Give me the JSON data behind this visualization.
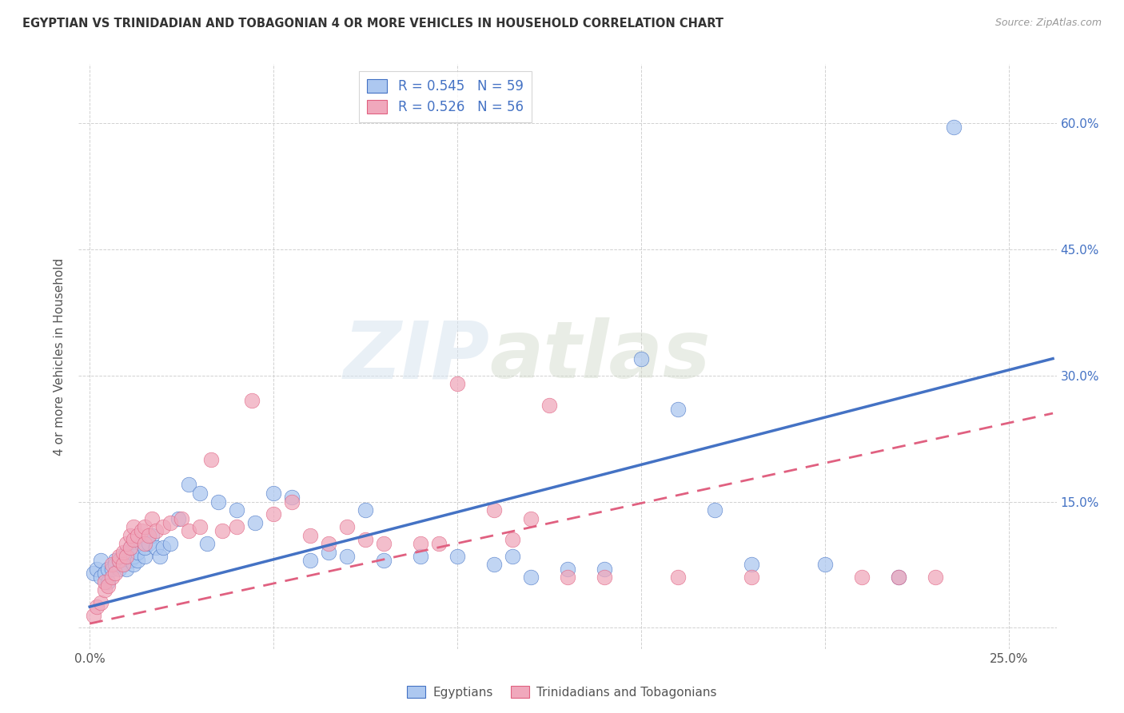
{
  "title": "EGYPTIAN VS TRINIDADIAN AND TOBAGONIAN 4 OR MORE VEHICLES IN HOUSEHOLD CORRELATION CHART",
  "source": "Source: ZipAtlas.com",
  "ylabel": "4 or more Vehicles in Household",
  "xlim": [
    -0.003,
    0.263
  ],
  "ylim": [
    -0.025,
    0.67
  ],
  "legend_r_egyptian": "R = 0.545",
  "legend_n_egyptian": "N = 59",
  "legend_r_trinidadian": "R = 0.526",
  "legend_n_trinidadian": "N = 56",
  "legend_labels": [
    "Egyptians",
    "Trinidadians and Tobagonians"
  ],
  "color_egyptian": "#adc8f0",
  "color_trinidadian": "#f0a8bc",
  "color_line_egyptian": "#4472c4",
  "color_line_trinidadian": "#e06080",
  "watermark": "ZIPatlas",
  "eg_line_x0": 0.0,
  "eg_line_y0": 0.025,
  "eg_line_x1": 0.262,
  "eg_line_y1": 0.32,
  "tri_line_x0": 0.0,
  "tri_line_y0": 0.005,
  "tri_line_x1": 0.262,
  "tri_line_y1": 0.255,
  "egyptian_x": [
    0.001,
    0.002,
    0.003,
    0.003,
    0.004,
    0.005,
    0.005,
    0.006,
    0.007,
    0.007,
    0.008,
    0.008,
    0.009,
    0.009,
    0.01,
    0.01,
    0.011,
    0.011,
    0.012,
    0.012,
    0.013,
    0.013,
    0.014,
    0.015,
    0.015,
    0.016,
    0.017,
    0.018,
    0.019,
    0.02,
    0.022,
    0.024,
    0.027,
    0.03,
    0.032,
    0.035,
    0.04,
    0.045,
    0.05,
    0.055,
    0.06,
    0.065,
    0.07,
    0.075,
    0.08,
    0.09,
    0.1,
    0.11,
    0.115,
    0.12,
    0.13,
    0.14,
    0.15,
    0.16,
    0.17,
    0.18,
    0.2,
    0.22,
    0.235
  ],
  "egyptian_y": [
    0.065,
    0.07,
    0.06,
    0.08,
    0.065,
    0.07,
    0.055,
    0.07,
    0.08,
    0.075,
    0.07,
    0.08,
    0.075,
    0.085,
    0.07,
    0.09,
    0.08,
    0.095,
    0.075,
    0.085,
    0.08,
    0.09,
    0.1,
    0.085,
    0.095,
    0.1,
    0.11,
    0.095,
    0.085,
    0.095,
    0.1,
    0.13,
    0.17,
    0.16,
    0.1,
    0.15,
    0.14,
    0.125,
    0.16,
    0.155,
    0.08,
    0.09,
    0.085,
    0.14,
    0.08,
    0.085,
    0.085,
    0.075,
    0.085,
    0.06,
    0.07,
    0.07,
    0.32,
    0.26,
    0.14,
    0.075,
    0.075,
    0.06,
    0.595
  ],
  "trinidadian_x": [
    0.001,
    0.002,
    0.003,
    0.004,
    0.004,
    0.005,
    0.006,
    0.006,
    0.007,
    0.008,
    0.008,
    0.009,
    0.009,
    0.01,
    0.01,
    0.011,
    0.011,
    0.012,
    0.012,
    0.013,
    0.014,
    0.015,
    0.015,
    0.016,
    0.017,
    0.018,
    0.02,
    0.022,
    0.025,
    0.027,
    0.03,
    0.033,
    0.036,
    0.04,
    0.044,
    0.05,
    0.055,
    0.06,
    0.065,
    0.07,
    0.075,
    0.08,
    0.09,
    0.095,
    0.1,
    0.11,
    0.115,
    0.12,
    0.125,
    0.13,
    0.14,
    0.16,
    0.18,
    0.21,
    0.22,
    0.23
  ],
  "trinidadian_y": [
    0.015,
    0.025,
    0.03,
    0.045,
    0.055,
    0.05,
    0.06,
    0.075,
    0.065,
    0.08,
    0.085,
    0.075,
    0.09,
    0.085,
    0.1,
    0.095,
    0.11,
    0.105,
    0.12,
    0.11,
    0.115,
    0.1,
    0.12,
    0.11,
    0.13,
    0.115,
    0.12,
    0.125,
    0.13,
    0.115,
    0.12,
    0.2,
    0.115,
    0.12,
    0.27,
    0.135,
    0.15,
    0.11,
    0.1,
    0.12,
    0.105,
    0.1,
    0.1,
    0.1,
    0.29,
    0.14,
    0.105,
    0.13,
    0.265,
    0.06,
    0.06,
    0.06,
    0.06,
    0.06,
    0.06,
    0.06
  ]
}
